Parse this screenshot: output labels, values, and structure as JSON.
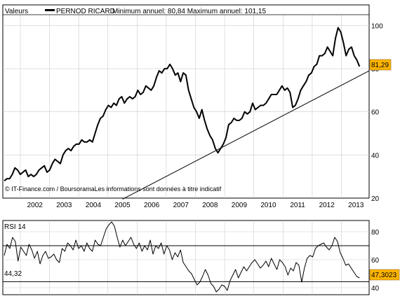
{
  "header": {
    "label": "Valeurs",
    "instrument": "PERNOD RICARD",
    "range_text": "Minimum annuel: 80,84 Maximum annuel: 101,15"
  },
  "credit": "© IT-Finance.com / BoursoramaLes informations sont données à titre indicatif",
  "rsi_label": "RSI 14",
  "colors": {
    "price_line": "#000000",
    "last_badge": "#ffb400",
    "grid": "#cccccc",
    "background": "#ffffff"
  },
  "chart_data": [
    {
      "type": "line",
      "name": "price",
      "x_start": 2001.45,
      "x_end": 2013.62,
      "xlim": [
        2001.4,
        2013.95
      ],
      "ylim": [
        20,
        105
      ],
      "x_tick_labels": [
        "2002",
        "2003",
        "2004",
        "2005",
        "2006",
        "2007",
        "2008",
        "2009",
        "2010",
        "2011",
        "2012",
        "2013"
      ],
      "y_ticks": [
        20,
        40,
        60,
        80,
        100
      ],
      "grid": true,
      "last_value": 81.29,
      "last_value_label": "81,29",
      "series": [
        {
          "values": [
            28,
            29,
            29,
            31,
            34,
            33,
            31,
            32,
            33,
            30,
            31,
            30,
            31,
            33,
            34,
            35,
            32,
            33,
            36,
            38,
            37,
            36,
            40,
            42,
            43,
            42,
            44,
            45,
            45,
            47,
            46,
            46,
            47,
            46,
            50,
            54,
            57,
            58,
            61,
            63,
            62,
            64,
            63,
            66,
            67,
            64,
            66,
            67,
            66,
            67,
            70,
            68,
            69,
            72,
            71,
            70,
            72,
            76,
            79,
            78,
            80,
            80,
            82,
            80,
            77,
            78,
            74,
            78,
            77,
            70,
            66,
            62,
            60,
            57,
            61,
            56,
            52,
            49,
            47,
            43,
            41,
            43,
            45,
            48,
            54,
            55,
            57,
            56,
            56,
            57,
            60,
            59,
            60,
            64,
            61,
            62,
            63,
            63,
            64,
            66,
            68,
            68,
            68,
            70,
            72,
            70,
            71,
            69,
            62,
            63,
            66,
            70,
            72,
            74,
            77,
            78,
            81,
            82,
            86,
            86,
            87,
            90,
            88,
            86,
            94,
            99,
            97,
            92,
            86,
            89,
            90,
            86,
            84,
            81
          ]
        },
        {
          "name": "trendline",
          "x": [
            2005.5,
            2013.95
          ],
          "values": [
            19.5,
            79
          ]
        }
      ]
    },
    {
      "type": "line",
      "name": "RSI 14",
      "ylim": [
        35,
        88
      ],
      "y_ticks": [
        40,
        60,
        80
      ],
      "levels": [
        70,
        44.32
      ],
      "level_label": "44,32",
      "last_value": 47.3023,
      "last_value_label": "47,3023",
      "series": [
        {
          "values": [
            63,
            71,
            68,
            76,
            73,
            59,
            69,
            66,
            63,
            71,
            67,
            61,
            66,
            57,
            63,
            66,
            61,
            62,
            64,
            60,
            58,
            68,
            66,
            72,
            70,
            67,
            74,
            68,
            70,
            66,
            72,
            68,
            66,
            74,
            71,
            70,
            76,
            82,
            85,
            87,
            84,
            76,
            69,
            74,
            70,
            73,
            76,
            71,
            68,
            72,
            66,
            70,
            67,
            74,
            64,
            70,
            68,
            72,
            64,
            70,
            67,
            60,
            65,
            62,
            67,
            58,
            55,
            52,
            50,
            46,
            42,
            44,
            48,
            53,
            49,
            43,
            41,
            37,
            39,
            42,
            41,
            38,
            45,
            49,
            53,
            47,
            51,
            55,
            52,
            55,
            58,
            60,
            57,
            54,
            56,
            59,
            55,
            61,
            57,
            53,
            60,
            58,
            55,
            49,
            54,
            52,
            58,
            56,
            44,
            54,
            61,
            63,
            62,
            68,
            70,
            71,
            72,
            69,
            67,
            70,
            76,
            73,
            65,
            61,
            56,
            57,
            54,
            51,
            48,
            47
          ]
        }
      ]
    }
  ]
}
